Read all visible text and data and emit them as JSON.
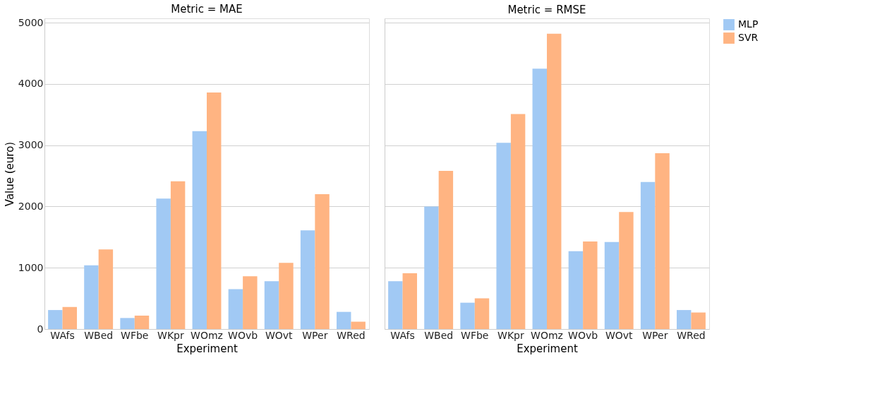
{
  "chart_data": [
    {
      "type": "bar",
      "title": "Metric = MAE",
      "xlabel": "Experiment",
      "ylabel": "Value (euro)",
      "categories": [
        "WAfs",
        "WBed",
        "WFbe",
        "WKpr",
        "WOmz",
        "WOvb",
        "WOvt",
        "WPer",
        "WRed"
      ],
      "series": [
        {
          "name": "MLP",
          "color": "#a1c9f4",
          "values": [
            310,
            1040,
            180,
            2130,
            3230,
            650,
            780,
            1610,
            280
          ]
        },
        {
          "name": "SVR",
          "color": "#ffb482",
          "values": [
            360,
            1300,
            220,
            2410,
            3860,
            860,
            1080,
            2200,
            120
          ]
        }
      ],
      "ylim": [
        0,
        5070
      ],
      "yticks": [
        0,
        1000,
        2000,
        3000,
        4000,
        5000
      ],
      "grid": "y",
      "legend": "top right"
    },
    {
      "type": "bar",
      "title": "Metric = RMSE",
      "xlabel": "Experiment",
      "categories": [
        "WAfs",
        "WBed",
        "WFbe",
        "WKpr",
        "WOmz",
        "WOvb",
        "WOvt",
        "WPer",
        "WRed"
      ],
      "series": [
        {
          "name": "MLP",
          "color": "#a1c9f4",
          "values": [
            780,
            2000,
            430,
            3040,
            4250,
            1270,
            1420,
            2400,
            310
          ]
        },
        {
          "name": "SVR",
          "color": "#ffb482",
          "values": [
            910,
            2580,
            500,
            3510,
            4820,
            1430,
            1910,
            2870,
            270
          ]
        }
      ],
      "ylim": [
        0,
        5070
      ],
      "yticks": [
        0,
        1000,
        2000,
        3000,
        4000,
        5000
      ],
      "grid": "y",
      "tick_labels": "x",
      "legend": "top right"
    }
  ]
}
